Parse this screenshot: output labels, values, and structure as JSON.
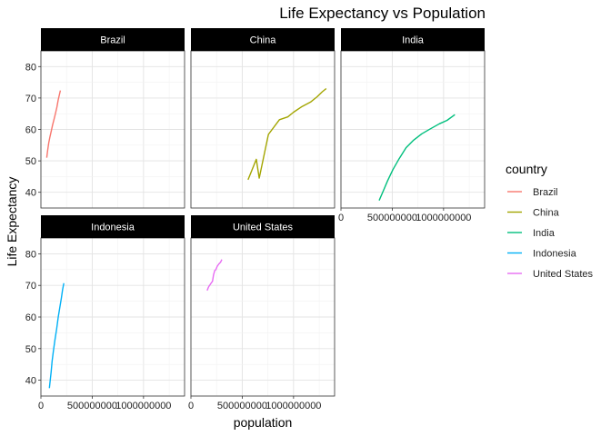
{
  "chart_data": {
    "type": "line",
    "title": "Life Expectancy vs Population",
    "xlabel": "population",
    "ylabel": "Life Expectancy",
    "xlim": [
      0,
      1400000000
    ],
    "ylim": [
      35,
      85
    ],
    "x_ticks": [
      0,
      500000000,
      1000000000
    ],
    "x_tick_labels": [
      "0",
      "500000000",
      "1000000000"
    ],
    "y_ticks": [
      40,
      50,
      60,
      70,
      80
    ],
    "y_tick_labels": [
      "40",
      "50",
      "60",
      "70",
      "80"
    ],
    "grid": true,
    "facet_by": "country",
    "legend": {
      "title": "country",
      "position": "right"
    },
    "series": [
      {
        "name": "Brazil",
        "color": "#F8766D",
        "points": [
          [
            56600000,
            51.0
          ],
          [
            65600000,
            53.3
          ],
          [
            76000000,
            55.7
          ],
          [
            88000000,
            57.6
          ],
          [
            100800000,
            59.5
          ],
          [
            114300000,
            61.5
          ],
          [
            128900000,
            63.3
          ],
          [
            142900000,
            65.2
          ],
          [
            155900000,
            67.1
          ],
          [
            168500000,
            69.4
          ],
          [
            179900000,
            71.0
          ],
          [
            190000000,
            72.4
          ]
        ]
      },
      {
        "name": "China",
        "color": "#A3A500",
        "points": [
          [
            556300000,
            44.0
          ],
          [
            637400000,
            50.5
          ],
          [
            665800000,
            44.5
          ],
          [
            754600000,
            58.4
          ],
          [
            862000000,
            63.1
          ],
          [
            943500000,
            64.0
          ],
          [
            1000300000,
            65.5
          ],
          [
            1084000000,
            67.3
          ],
          [
            1164900000,
            68.7
          ],
          [
            1230100000,
            70.4
          ],
          [
            1280400000,
            72.0
          ],
          [
            1318700000,
            73.0
          ]
        ]
      },
      {
        "name": "India",
        "color": "#00BF7D",
        "points": [
          [
            372000000,
            37.4
          ],
          [
            409000000,
            40.2
          ],
          [
            454000000,
            43.6
          ],
          [
            506000000,
            47.2
          ],
          [
            567000000,
            50.7
          ],
          [
            634000000,
            54.2
          ],
          [
            708000000,
            56.6
          ],
          [
            788000000,
            58.6
          ],
          [
            872000000,
            60.2
          ],
          [
            959000000,
            61.8
          ],
          [
            1034200000,
            62.9
          ],
          [
            1110400000,
            64.7
          ]
        ]
      },
      {
        "name": "Indonesia",
        "color": "#00B0F6",
        "points": [
          [
            82000000,
            37.5
          ],
          [
            90100000,
            39.9
          ],
          [
            99000000,
            42.5
          ],
          [
            109300000,
            46.0
          ],
          [
            121300000,
            49.2
          ],
          [
            136700000,
            52.7
          ],
          [
            153300000,
            56.2
          ],
          [
            169300000,
            60.1
          ],
          [
            182700000,
            62.7
          ],
          [
            199300000,
            66.0
          ],
          [
            211100000,
            68.6
          ],
          [
            223500000,
            70.7
          ]
        ]
      },
      {
        "name": "United States",
        "color": "#E76BF3",
        "points": [
          [
            157600000,
            68.4
          ],
          [
            171900000,
            69.5
          ],
          [
            186500000,
            70.2
          ],
          [
            198700000,
            70.8
          ],
          [
            209900000,
            71.3
          ],
          [
            220200000,
            73.4
          ],
          [
            232200000,
            74.7
          ],
          [
            242800000,
            75.0
          ],
          [
            256900000,
            76.1
          ],
          [
            272900000,
            76.8
          ],
          [
            287700000,
            77.3
          ],
          [
            301100000,
            78.2
          ]
        ]
      }
    ]
  }
}
